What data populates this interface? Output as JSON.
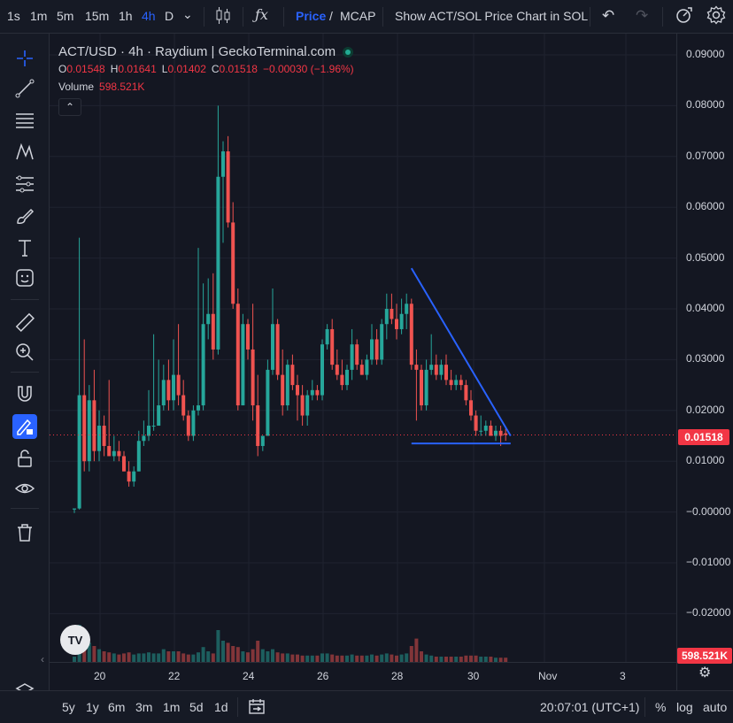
{
  "topbar": {
    "intervals": [
      "1s",
      "1m",
      "5m",
      "15m",
      "1h",
      "4h",
      "D"
    ],
    "active_interval": "4h",
    "price_label": "Price",
    "slash": "/",
    "mcap_label": "MCAP",
    "sol_label": "Show ACT/SOL Price Chart in SOL"
  },
  "legend": {
    "title": "ACT/USD · 4h · Raydium | GeckoTerminal.com",
    "o_label": "O",
    "o_value": "0.01548",
    "h_label": "H",
    "h_value": "0.01641",
    "l_label": "L",
    "l_value": "0.01402",
    "c_label": "C",
    "c_value": "0.01518",
    "change": "−0.00030 (−1.96%)",
    "volume_label": "Volume",
    "volume_value": "598.521K"
  },
  "y_axis": {
    "labels": [
      "0.09000",
      "0.08000",
      "0.07000",
      "0.06000",
      "0.05000",
      "0.04000",
      "0.03000",
      "0.02000",
      "0.01000",
      "−0.00000",
      "−0.01000",
      "−0.02000"
    ],
    "price_badge": "0.01518",
    "volume_badge": "598.521K"
  },
  "x_axis": {
    "labels": [
      "20",
      "22",
      "24",
      "26",
      "28",
      "30",
      "Nov",
      "3"
    ]
  },
  "bottombar": {
    "ranges": [
      "5y",
      "1y",
      "6m",
      "3m",
      "1m",
      "5d",
      "1d"
    ],
    "time": "20:07:01 (UTC+1)",
    "percent": "%",
    "log": "log",
    "auto": "auto"
  },
  "colors": {
    "up": "#26a69a",
    "down": "#ef5350",
    "accent": "#2962ff",
    "bg": "#141722"
  },
  "chart_data": {
    "type": "candlestick",
    "pair": "ACT/USD",
    "interval": "4h",
    "last_close": 0.01518,
    "ylim": [
      -0.025,
      0.093
    ],
    "candles": [
      {
        "o": 0.0005,
        "h": 0.0007,
        "l": -0.0002,
        "c": 0.0007,
        "v": 0.05
      },
      {
        "o": 0.0007,
        "h": 0.054,
        "l": 0.0005,
        "c": 0.023,
        "v": 0.35
      },
      {
        "o": 0.023,
        "h": 0.034,
        "l": 0.008,
        "c": 0.01,
        "v": 0.25
      },
      {
        "o": 0.01,
        "h": 0.025,
        "l": 0.008,
        "c": 0.022,
        "v": 0.18
      },
      {
        "o": 0.022,
        "h": 0.028,
        "l": 0.01,
        "c": 0.012,
        "v": 0.15
      },
      {
        "o": 0.012,
        "h": 0.02,
        "l": 0.01,
        "c": 0.017,
        "v": 0.12
      },
      {
        "o": 0.017,
        "h": 0.019,
        "l": 0.011,
        "c": 0.013,
        "v": 0.1
      },
      {
        "o": 0.013,
        "h": 0.026,
        "l": 0.011,
        "c": 0.011,
        "v": 0.09
      },
      {
        "o": 0.011,
        "h": 0.015,
        "l": 0.01,
        "c": 0.012,
        "v": 0.08
      },
      {
        "o": 0.012,
        "h": 0.014,
        "l": 0.01,
        "c": 0.011,
        "v": 0.07
      },
      {
        "o": 0.011,
        "h": 0.012,
        "l": 0.008,
        "c": 0.008,
        "v": 0.08
      },
      {
        "o": 0.008,
        "h": 0.01,
        "l": 0.005,
        "c": 0.006,
        "v": 0.09
      },
      {
        "o": 0.006,
        "h": 0.009,
        "l": 0.005,
        "c": 0.008,
        "v": 0.07
      },
      {
        "o": 0.008,
        "h": 0.016,
        "l": 0.008,
        "c": 0.014,
        "v": 0.08
      },
      {
        "o": 0.014,
        "h": 0.018,
        "l": 0.013,
        "c": 0.015,
        "v": 0.08
      },
      {
        "o": 0.015,
        "h": 0.024,
        "l": 0.014,
        "c": 0.017,
        "v": 0.09
      },
      {
        "o": 0.017,
        "h": 0.035,
        "l": 0.016,
        "c": 0.017,
        "v": 0.08
      },
      {
        "o": 0.017,
        "h": 0.03,
        "l": 0.017,
        "c": 0.021,
        "v": 0.08
      },
      {
        "o": 0.021,
        "h": 0.029,
        "l": 0.02,
        "c": 0.026,
        "v": 0.12
      },
      {
        "o": 0.026,
        "h": 0.03,
        "l": 0.02,
        "c": 0.022,
        "v": 0.1
      },
      {
        "o": 0.022,
        "h": 0.034,
        "l": 0.02,
        "c": 0.027,
        "v": 0.1
      },
      {
        "o": 0.027,
        "h": 0.037,
        "l": 0.021,
        "c": 0.023,
        "v": 0.1
      },
      {
        "o": 0.023,
        "h": 0.026,
        "l": 0.018,
        "c": 0.019,
        "v": 0.08
      },
      {
        "o": 0.019,
        "h": 0.02,
        "l": 0.014,
        "c": 0.015,
        "v": 0.07
      },
      {
        "o": 0.015,
        "h": 0.021,
        "l": 0.014,
        "c": 0.02,
        "v": 0.07
      },
      {
        "o": 0.02,
        "h": 0.052,
        "l": 0.019,
        "c": 0.021,
        "v": 0.09
      },
      {
        "o": 0.021,
        "h": 0.045,
        "l": 0.02,
        "c": 0.037,
        "v": 0.14
      },
      {
        "o": 0.037,
        "h": 0.046,
        "l": 0.034,
        "c": 0.039,
        "v": 0.1
      },
      {
        "o": 0.039,
        "h": 0.047,
        "l": 0.03,
        "c": 0.032,
        "v": 0.08
      },
      {
        "o": 0.032,
        "h": 0.08,
        "l": 0.031,
        "c": 0.066,
        "v": 0.3
      },
      {
        "o": 0.066,
        "h": 0.073,
        "l": 0.053,
        "c": 0.071,
        "v": 0.2
      },
      {
        "o": 0.071,
        "h": 0.074,
        "l": 0.056,
        "c": 0.057,
        "v": 0.18
      },
      {
        "o": 0.057,
        "h": 0.061,
        "l": 0.04,
        "c": 0.041,
        "v": 0.15
      },
      {
        "o": 0.041,
        "h": 0.044,
        "l": 0.02,
        "c": 0.021,
        "v": 0.14
      },
      {
        "o": 0.021,
        "h": 0.039,
        "l": 0.021,
        "c": 0.037,
        "v": 0.1
      },
      {
        "o": 0.037,
        "h": 0.038,
        "l": 0.03,
        "c": 0.032,
        "v": 0.09
      },
      {
        "o": 0.032,
        "h": 0.041,
        "l": 0.018,
        "c": 0.021,
        "v": 0.12
      },
      {
        "o": 0.021,
        "h": 0.027,
        "l": 0.011,
        "c": 0.013,
        "v": 0.2
      },
      {
        "o": 0.013,
        "h": 0.015,
        "l": 0.012,
        "c": 0.015,
        "v": 0.12
      },
      {
        "o": 0.015,
        "h": 0.03,
        "l": 0.015,
        "c": 0.028,
        "v": 0.1
      },
      {
        "o": 0.028,
        "h": 0.044,
        "l": 0.027,
        "c": 0.037,
        "v": 0.12
      },
      {
        "o": 0.037,
        "h": 0.038,
        "l": 0.026,
        "c": 0.027,
        "v": 0.09
      },
      {
        "o": 0.027,
        "h": 0.032,
        "l": 0.019,
        "c": 0.021,
        "v": 0.08
      },
      {
        "o": 0.021,
        "h": 0.03,
        "l": 0.02,
        "c": 0.029,
        "v": 0.08
      },
      {
        "o": 0.029,
        "h": 0.031,
        "l": 0.024,
        "c": 0.025,
        "v": 0.07
      },
      {
        "o": 0.025,
        "h": 0.027,
        "l": 0.018,
        "c": 0.023,
        "v": 0.07
      },
      {
        "o": 0.023,
        "h": 0.025,
        "l": 0.017,
        "c": 0.019,
        "v": 0.06
      },
      {
        "o": 0.019,
        "h": 0.024,
        "l": 0.017,
        "c": 0.023,
        "v": 0.06
      },
      {
        "o": 0.023,
        "h": 0.026,
        "l": 0.022,
        "c": 0.024,
        "v": 0.06
      },
      {
        "o": 0.024,
        "h": 0.025,
        "l": 0.022,
        "c": 0.023,
        "v": 0.06
      },
      {
        "o": 0.023,
        "h": 0.034,
        "l": 0.022,
        "c": 0.033,
        "v": 0.08
      },
      {
        "o": 0.033,
        "h": 0.037,
        "l": 0.032,
        "c": 0.036,
        "v": 0.08
      },
      {
        "o": 0.036,
        "h": 0.038,
        "l": 0.028,
        "c": 0.029,
        "v": 0.07
      },
      {
        "o": 0.029,
        "h": 0.032,
        "l": 0.026,
        "c": 0.027,
        "v": 0.06
      },
      {
        "o": 0.027,
        "h": 0.03,
        "l": 0.024,
        "c": 0.025,
        "v": 0.06
      },
      {
        "o": 0.025,
        "h": 0.029,
        "l": 0.024,
        "c": 0.028,
        "v": 0.06
      },
      {
        "o": 0.028,
        "h": 0.036,
        "l": 0.026,
        "c": 0.033,
        "v": 0.07
      },
      {
        "o": 0.033,
        "h": 0.034,
        "l": 0.028,
        "c": 0.029,
        "v": 0.06
      },
      {
        "o": 0.029,
        "h": 0.03,
        "l": 0.027,
        "c": 0.027,
        "v": 0.06
      },
      {
        "o": 0.027,
        "h": 0.031,
        "l": 0.026,
        "c": 0.03,
        "v": 0.06
      },
      {
        "o": 0.03,
        "h": 0.037,
        "l": 0.029,
        "c": 0.034,
        "v": 0.07
      },
      {
        "o": 0.034,
        "h": 0.036,
        "l": 0.029,
        "c": 0.03,
        "v": 0.06
      },
      {
        "o": 0.03,
        "h": 0.038,
        "l": 0.029,
        "c": 0.037,
        "v": 0.07
      },
      {
        "o": 0.037,
        "h": 0.043,
        "l": 0.034,
        "c": 0.04,
        "v": 0.08
      },
      {
        "o": 0.04,
        "h": 0.043,
        "l": 0.037,
        "c": 0.038,
        "v": 0.07
      },
      {
        "o": 0.038,
        "h": 0.041,
        "l": 0.034,
        "c": 0.036,
        "v": 0.06
      },
      {
        "o": 0.036,
        "h": 0.042,
        "l": 0.035,
        "c": 0.039,
        "v": 0.07
      },
      {
        "o": 0.039,
        "h": 0.043,
        "l": 0.036,
        "c": 0.041,
        "v": 0.08
      },
      {
        "o": 0.041,
        "h": 0.042,
        "l": 0.028,
        "c": 0.029,
        "v": 0.15
      },
      {
        "o": 0.029,
        "h": 0.032,
        "l": 0.018,
        "c": 0.028,
        "v": 0.22
      },
      {
        "o": 0.028,
        "h": 0.029,
        "l": 0.02,
        "c": 0.021,
        "v": 0.1
      },
      {
        "o": 0.021,
        "h": 0.03,
        "l": 0.02,
        "c": 0.028,
        "v": 0.07
      },
      {
        "o": 0.028,
        "h": 0.035,
        "l": 0.027,
        "c": 0.029,
        "v": 0.06
      },
      {
        "o": 0.029,
        "h": 0.031,
        "l": 0.026,
        "c": 0.027,
        "v": 0.05
      },
      {
        "o": 0.027,
        "h": 0.03,
        "l": 0.026,
        "c": 0.029,
        "v": 0.05
      },
      {
        "o": 0.029,
        "h": 0.031,
        "l": 0.025,
        "c": 0.026,
        "v": 0.05
      },
      {
        "o": 0.026,
        "h": 0.028,
        "l": 0.024,
        "c": 0.025,
        "v": 0.05
      },
      {
        "o": 0.025,
        "h": 0.027,
        "l": 0.024,
        "c": 0.026,
        "v": 0.05
      },
      {
        "o": 0.026,
        "h": 0.027,
        "l": 0.024,
        "c": 0.025,
        "v": 0.05
      },
      {
        "o": 0.025,
        "h": 0.026,
        "l": 0.021,
        "c": 0.022,
        "v": 0.06
      },
      {
        "o": 0.022,
        "h": 0.024,
        "l": 0.018,
        "c": 0.019,
        "v": 0.06
      },
      {
        "o": 0.019,
        "h": 0.02,
        "l": 0.015,
        "c": 0.016,
        "v": 0.06
      },
      {
        "o": 0.016,
        "h": 0.019,
        "l": 0.015,
        "c": 0.016,
        "v": 0.05
      },
      {
        "o": 0.016,
        "h": 0.018,
        "l": 0.015,
        "c": 0.017,
        "v": 0.05
      },
      {
        "o": 0.017,
        "h": 0.018,
        "l": 0.015,
        "c": 0.015,
        "v": 0.05
      },
      {
        "o": 0.015,
        "h": 0.017,
        "l": 0.014,
        "c": 0.016,
        "v": 0.04
      },
      {
        "o": 0.016,
        "h": 0.017,
        "l": 0.013,
        "c": 0.015,
        "v": 0.04
      },
      {
        "o": 0.01548,
        "h": 0.01641,
        "l": 0.01402,
        "c": 0.01518,
        "v": 0.04
      }
    ],
    "drawings": {
      "triangle": [
        {
          "x": 68,
          "y": 0.048
        },
        {
          "x": 88,
          "y": 0.015
        },
        {
          "x": 68,
          "y": 0.0135
        },
        {
          "x": 88,
          "y": 0.0135
        }
      ]
    }
  }
}
